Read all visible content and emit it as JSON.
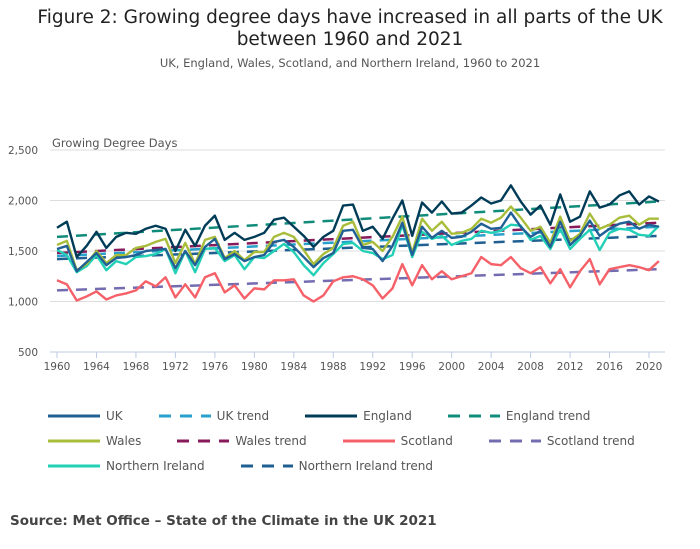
{
  "title": "Figure 2: Growing degree days have increased in all parts of the UK between 1960 and 2021",
  "subtitle": "UK, England, Wales, Scotland, and Northern Ireland, 1960 to 2021",
  "source": "Source: Met Office – State of the Climate in the UK 2021",
  "chart_data": {
    "type": "line",
    "title": "Figure 2: Growing degree days have increased in all parts of the UK between 1960 and 2021",
    "ylabel": "Growing Degree Days",
    "xlabel": "",
    "xlim": [
      1960,
      2021
    ],
    "ylim": [
      500,
      2500
    ],
    "yticks": [
      "500",
      "1,000",
      "1,500",
      "2,000",
      "2,500"
    ],
    "ytick_values": [
      500,
      1000,
      1500,
      2000,
      2500
    ],
    "xticks": [
      "1960",
      "1964",
      "1968",
      "1972",
      "1976",
      "1980",
      "1984",
      "1988",
      "1992",
      "1996",
      "2000",
      "2004",
      "2008",
      "2012",
      "2016",
      "2020"
    ],
    "grid": "horizontal",
    "legend_position": "bottom",
    "x_start": 1960,
    "series": [
      {
        "name": "UK",
        "color": "#206095",
        "dashed": false,
        "values": [
          1520,
          1550,
          1300,
          1390,
          1480,
          1360,
          1430,
          1440,
          1460,
          1500,
          1510,
          1520,
          1330,
          1500,
          1360,
          1540,
          1620,
          1420,
          1470,
          1400,
          1440,
          1460,
          1590,
          1610,
          1540,
          1440,
          1340,
          1430,
          1480,
          1700,
          1710,
          1530,
          1520,
          1400,
          1550,
          1780,
          1460,
          1740,
          1630,
          1700,
          1630,
          1640,
          1690,
          1770,
          1720,
          1730,
          1880,
          1740,
          1640,
          1700,
          1540,
          1790,
          1560,
          1650,
          1800,
          1650,
          1720,
          1770,
          1790,
          1720,
          1760,
          1740
        ]
      },
      {
        "name": "UK trend",
        "color": "#27a0cc",
        "dashed": true,
        "trend": [
          1450,
          1740
        ]
      },
      {
        "name": "England",
        "color": "#003c57",
        "dashed": false,
        "values": [
          1730,
          1790,
          1440,
          1550,
          1690,
          1530,
          1640,
          1680,
          1670,
          1720,
          1750,
          1720,
          1500,
          1710,
          1550,
          1750,
          1850,
          1610,
          1680,
          1610,
          1640,
          1680,
          1810,
          1830,
          1740,
          1650,
          1540,
          1640,
          1700,
          1950,
          1960,
          1700,
          1740,
          1620,
          1820,
          2000,
          1650,
          1980,
          1880,
          1990,
          1870,
          1880,
          1950,
          2030,
          1970,
          2000,
          2150,
          1990,
          1860,
          1950,
          1760,
          2060,
          1790,
          1840,
          2090,
          1930,
          1960,
          2050,
          2090,
          1960,
          2040,
          1990
        ]
      },
      {
        "name": "England trend",
        "color": "#118c7b",
        "dashed": true,
        "trend": [
          1640,
          1990
        ]
      },
      {
        "name": "Wales",
        "color": "#a8bd3a",
        "dashed": false,
        "values": [
          1560,
          1600,
          1310,
          1370,
          1500,
          1380,
          1460,
          1460,
          1530,
          1550,
          1590,
          1620,
          1380,
          1580,
          1370,
          1610,
          1640,
          1430,
          1500,
          1410,
          1490,
          1490,
          1640,
          1680,
          1640,
          1510,
          1370,
          1470,
          1530,
          1750,
          1790,
          1560,
          1590,
          1500,
          1640,
          1840,
          1480,
          1820,
          1700,
          1790,
          1670,
          1680,
          1720,
          1820,
          1780,
          1830,
          1940,
          1830,
          1700,
          1740,
          1580,
          1840,
          1600,
          1670,
          1870,
          1720,
          1760,
          1830,
          1850,
          1760,
          1820,
          1820
        ]
      },
      {
        "name": "Wales trend",
        "color": "#871a5b",
        "dashed": true,
        "trend": [
          1480,
          1780
        ]
      },
      {
        "name": "Scotland",
        "color": "#f66068",
        "dashed": false,
        "values": [
          1210,
          1170,
          1010,
          1050,
          1100,
          1020,
          1060,
          1080,
          1110,
          1200,
          1150,
          1240,
          1040,
          1170,
          1040,
          1240,
          1280,
          1090,
          1160,
          1030,
          1130,
          1120,
          1210,
          1210,
          1220,
          1060,
          1000,
          1060,
          1200,
          1240,
          1250,
          1220,
          1160,
          1030,
          1130,
          1370,
          1160,
          1360,
          1220,
          1300,
          1220,
          1250,
          1280,
          1440,
          1370,
          1360,
          1440,
          1330,
          1280,
          1340,
          1180,
          1320,
          1140,
          1300,
          1420,
          1170,
          1320,
          1340,
          1360,
          1340,
          1310,
          1400
        ]
      },
      {
        "name": "Scotland trend",
        "color": "#746cb1",
        "dashed": true,
        "trend": [
          1110,
          1320
        ]
      },
      {
        "name": "Northern Ireland",
        "color": "#22d0b6",
        "dashed": false,
        "values": [
          1510,
          1460,
          1290,
          1350,
          1460,
          1310,
          1400,
          1370,
          1440,
          1450,
          1470,
          1520,
          1280,
          1500,
          1290,
          1520,
          1530,
          1400,
          1460,
          1320,
          1440,
          1430,
          1500,
          1570,
          1490,
          1360,
          1260,
          1380,
          1470,
          1570,
          1580,
          1500,
          1480,
          1420,
          1460,
          1760,
          1440,
          1690,
          1620,
          1650,
          1560,
          1600,
          1620,
          1700,
          1680,
          1700,
          1760,
          1750,
          1610,
          1650,
          1520,
          1720,
          1520,
          1620,
          1710,
          1510,
          1680,
          1720,
          1710,
          1660,
          1650,
          1750
        ]
      },
      {
        "name": "Northern Ireland trend",
        "color": "#1f5f91",
        "dashed": true,
        "trend": [
          1420,
          1650
        ]
      }
    ]
  }
}
